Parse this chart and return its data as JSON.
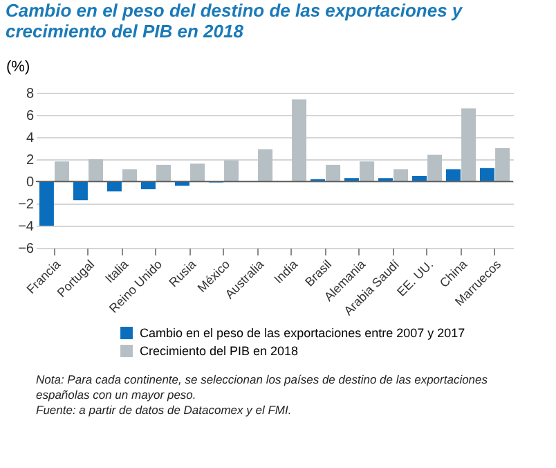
{
  "chart_data": {
    "type": "bar",
    "title": "Cambio en el peso del destino de las exportaciones y crecimiento del PIB en 2018",
    "ylabel": "(%)",
    "categories": [
      "Francia",
      "Portugal",
      "Italia",
      "Reino Unido",
      "Rusia",
      "México",
      "Australia",
      "India",
      "Brasil",
      "Alemania",
      "Arabia Saudí",
      "EE. UU.",
      "China",
      "Marruecos"
    ],
    "series": [
      {
        "name": "Cambio en el peso de las exportaciones entre 2007 y 2017",
        "color": "#0a6ebd",
        "values": [
          -4.0,
          -1.7,
          -0.9,
          -0.7,
          -0.4,
          -0.1,
          0,
          0,
          0.2,
          0.3,
          0.3,
          0.5,
          1.1,
          1.2
        ]
      },
      {
        "name": "Crecimiento del PIB en 2018",
        "color": "#b6bfc4",
        "values": [
          1.8,
          2.0,
          1.1,
          1.5,
          1.6,
          1.9,
          2.9,
          7.4,
          1.5,
          1.8,
          1.1,
          2.4,
          6.6,
          3.0
        ]
      }
    ],
    "ylim": [
      -6,
      8
    ],
    "yticks": [
      -6,
      -4,
      -2,
      0,
      2,
      4,
      6,
      8
    ],
    "grid": "y",
    "legend": "bottom",
    "annotations": [
      "Nota: Para cada continente, se seleccionan los países de destino de las exportaciones españolas con un mayor peso.",
      "Fuente: a partir de datos de Datacomex y el FMI."
    ]
  }
}
